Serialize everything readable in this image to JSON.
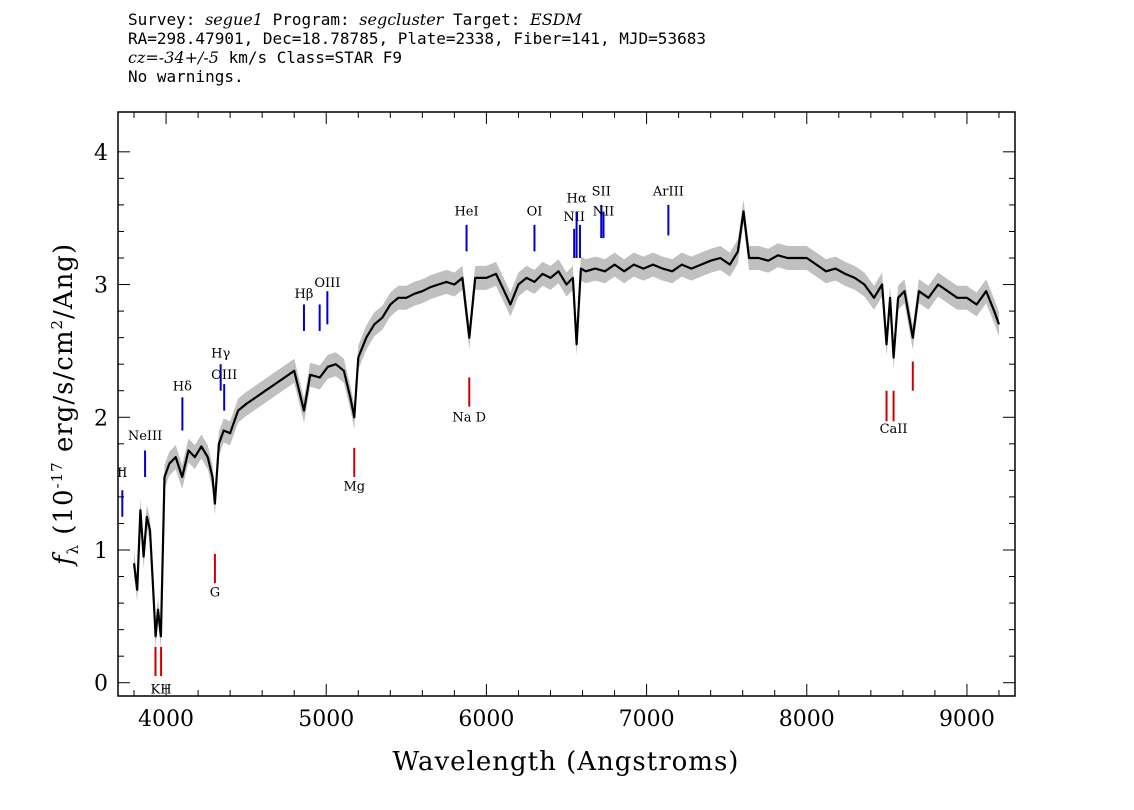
{
  "header": {
    "line1": {
      "survey_label": "Survey: ",
      "survey": "segue1",
      "program_label": " Program: ",
      "program": "segcluster",
      "target_label": " Target: ",
      "target": "ESDM"
    },
    "line2": "RA=298.47901, Dec=18.78785, Plate=2338, Fiber=141, MJD=53683",
    "line3": {
      "cz_label": "cz=",
      "cz_value": "-34+/-5",
      "rest": " km/s Class=STAR F9"
    },
    "line4": "No warnings."
  },
  "chart_data": {
    "type": "line",
    "xlabel": "Wavelength (Angstroms)",
    "ylabel": "f_λ (10^-17 erg/s/cm^2/Ang)",
    "xlim": [
      3700,
      9300
    ],
    "ylim": [
      -0.1,
      4.3
    ],
    "xticks": [
      4000,
      5000,
      6000,
      7000,
      8000,
      9000
    ],
    "yticks": [
      0,
      1,
      2,
      3,
      4
    ],
    "colors": {
      "flux": "#000000",
      "error_band": "#c0c0c0",
      "emission": "#0000cc",
      "absorption": "#cc0000"
    },
    "series": [
      {
        "x": [
          3800,
          3820,
          3840,
          3860,
          3880,
          3900,
          3920,
          3935,
          3950,
          3968,
          3990,
          4020,
          4060,
          4101,
          4140,
          4180,
          4220,
          4260,
          4290,
          4305,
          4330,
          4360,
          4400,
          4450,
          4500,
          4560,
          4620,
          4680,
          4740,
          4800,
          4861,
          4900,
          4960,
          5010,
          5060,
          5110,
          5150,
          5175,
          5200,
          5250,
          5300,
          5350,
          5400,
          5450,
          5500,
          5550,
          5600,
          5650,
          5700,
          5750,
          5800,
          5850,
          5893,
          5930,
          6000,
          6060,
          6100,
          6150,
          6200,
          6250,
          6300,
          6350,
          6400,
          6450,
          6500,
          6540,
          6563,
          6590,
          6620,
          6680,
          6740,
          6800,
          6860,
          6920,
          6980,
          7040,
          7100,
          7160,
          7220,
          7280,
          7340,
          7400,
          7460,
          7520,
          7570,
          7605,
          7640,
          7700,
          7760,
          7820,
          7880,
          7940,
          8000,
          8060,
          8120,
          8180,
          8240,
          8300,
          8360,
          8420,
          8470,
          8498,
          8520,
          8542,
          8570,
          8610,
          8662,
          8700,
          8760,
          8820,
          8880,
          8940,
          9000,
          9060,
          9120,
          9170,
          9200
        ],
        "values": [
          0.9,
          0.7,
          1.3,
          0.95,
          1.25,
          1.15,
          0.7,
          0.35,
          0.55,
          0.35,
          1.55,
          1.65,
          1.7,
          1.55,
          1.75,
          1.7,
          1.78,
          1.7,
          1.55,
          1.35,
          1.8,
          1.9,
          1.88,
          2.05,
          2.1,
          2.15,
          2.2,
          2.25,
          2.3,
          2.35,
          2.05,
          2.32,
          2.3,
          2.38,
          2.4,
          2.35,
          2.15,
          2.0,
          2.45,
          2.6,
          2.7,
          2.75,
          2.85,
          2.9,
          2.9,
          2.93,
          2.95,
          2.98,
          3.0,
          3.02,
          3.0,
          3.05,
          2.6,
          3.05,
          3.05,
          3.08,
          2.98,
          2.85,
          3.0,
          3.05,
          3.02,
          3.08,
          3.05,
          3.1,
          3.0,
          3.05,
          2.55,
          3.12,
          3.1,
          3.12,
          3.1,
          3.15,
          3.1,
          3.15,
          3.12,
          3.15,
          3.12,
          3.1,
          3.15,
          3.12,
          3.15,
          3.18,
          3.2,
          3.15,
          3.25,
          3.55,
          3.2,
          3.2,
          3.18,
          3.22,
          3.2,
          3.2,
          3.2,
          3.15,
          3.1,
          3.12,
          3.08,
          3.05,
          3.0,
          2.9,
          3.0,
          2.55,
          2.9,
          2.45,
          2.9,
          2.95,
          2.6,
          2.95,
          2.9,
          3.0,
          2.95,
          2.9,
          2.9,
          2.85,
          2.95,
          2.8,
          2.7
        ]
      }
    ],
    "emission_lines": [
      {
        "label": "II",
        "wave": 3727,
        "y1": 1.25,
        "y2": 1.45,
        "label_y": 1.55
      },
      {
        "label": "NeIII",
        "wave": 3869,
        "y1": 1.55,
        "y2": 1.75,
        "label_y": 1.83
      },
      {
        "label": "Hδ",
        "wave": 4102,
        "y1": 1.9,
        "y2": 2.15,
        "label_y": 2.2
      },
      {
        "label": "Hγ",
        "wave": 4341,
        "y1": 2.2,
        "y2": 2.4,
        "label_y": 2.45
      },
      {
        "label": "OIII",
        "wave": 4363,
        "y1": 2.05,
        "y2": 2.25,
        "label_y": 2.29
      },
      {
        "label": "Hβ",
        "wave": 4861,
        "y1": 2.65,
        "y2": 2.85,
        "label_y": 2.9
      },
      {
        "label": "OIII",
        "wave": 4959,
        "y1": 2.65,
        "y2": 2.85,
        "label_y": null
      },
      {
        "label": "OIII",
        "wave": 5007,
        "y1": 2.7,
        "y2": 2.95,
        "label_y": 2.98
      },
      {
        "label": "HeI",
        "wave": 5876,
        "y1": 3.25,
        "y2": 3.45,
        "label_y": 3.52
      },
      {
        "label": "OI",
        "wave": 6300,
        "y1": 3.25,
        "y2": 3.45,
        "label_y": 3.52
      },
      {
        "label": "NII",
        "wave": 6548,
        "y1": 3.2,
        "y2": 3.42,
        "label_y": 3.48
      },
      {
        "label": "Hα",
        "wave": 6563,
        "y1": 3.2,
        "y2": 3.55,
        "label_y": 3.62
      },
      {
        "label": "NII",
        "wave": 6584,
        "y1": 3.2,
        "y2": 3.45,
        "label_y": null
      },
      {
        "label": "SII",
        "wave": 6717,
        "y1": 3.35,
        "y2": 3.6,
        "label_y": 3.67
      },
      {
        "label": "NII",
        "wave": 6731,
        "y1": 3.35,
        "y2": 3.55,
        "label_y": 3.52
      },
      {
        "label": "ArIII",
        "wave": 7136,
        "y1": 3.37,
        "y2": 3.6,
        "label_y": 3.67
      }
    ],
    "absorption_lines": [
      {
        "label": "",
        "wave": 3934,
        "y1": 0.05,
        "y2": 0.27,
        "label_y": null
      },
      {
        "label": "KH",
        "wave": 3969,
        "y1": 0.05,
        "y2": 0.27,
        "label_y": -0.08
      },
      {
        "label": "G",
        "wave": 4305,
        "y1": 0.75,
        "y2": 0.97,
        "label_y": 0.65
      },
      {
        "label": "Mg",
        "wave": 5175,
        "y1": 1.55,
        "y2": 1.77,
        "label_y": 1.45
      },
      {
        "label": "Na D",
        "wave": 5893,
        "y1": 2.08,
        "y2": 2.3,
        "label_y": 1.97
      },
      {
        "label": "",
        "wave": 8498,
        "y1": 1.97,
        "y2": 2.2,
        "label_y": null
      },
      {
        "label": "CaII",
        "wave": 8542,
        "y1": 1.97,
        "y2": 2.2,
        "label_y": 1.88
      },
      {
        "label": "",
        "wave": 8662,
        "y1": 2.2,
        "y2": 2.42,
        "label_y": null
      }
    ]
  }
}
